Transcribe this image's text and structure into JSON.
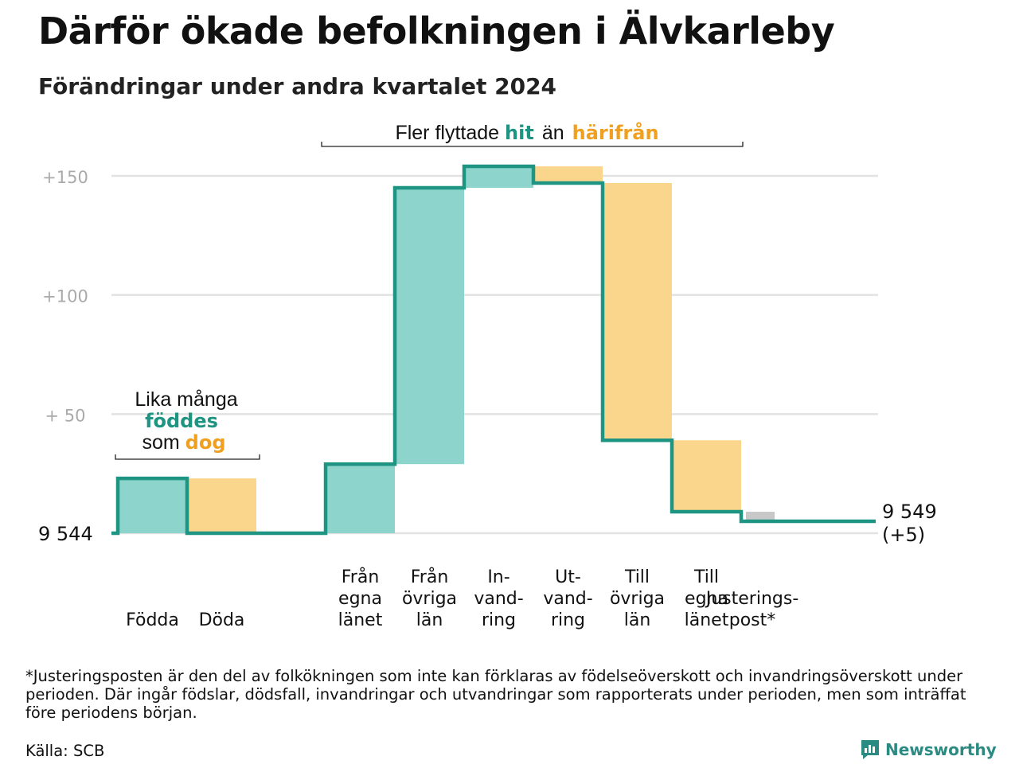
{
  "title": "Därför ökade befolkningen i Älvkarleby",
  "subtitle": "Förändringar under andra kvartalet 2024",
  "colors": {
    "positive": "#8dd5cc",
    "negative": "#fad58c",
    "adjustment": "#c8c8c8",
    "line": "#1e9482",
    "accent_teal": "#1e9482",
    "accent_orange": "#f0a020",
    "grid": "#e2e2e2",
    "tick": "#aaaaaa"
  },
  "chart_data": {
    "type": "waterfall",
    "baseline_value": 9544,
    "ylim": [
      0,
      150
    ],
    "y_ticks": [
      {
        "value": 150,
        "label": "+150"
      },
      {
        "value": 100,
        "label": "+100"
      },
      {
        "value": 50,
        "label": "+  50"
      }
    ],
    "baseline_label": "9  544",
    "end_label": [
      "9 549",
      "(+5)"
    ],
    "steps": [
      {
        "label": [
          "Födda"
        ],
        "value": 23,
        "kind": "positive"
      },
      {
        "label": [
          "Döda"
        ],
        "value": -23,
        "kind": "negative"
      },
      {
        "label": [],
        "value": 0,
        "kind": "gap"
      },
      {
        "label": [
          "Från",
          "egna",
          "länet"
        ],
        "value": 29,
        "kind": "positive"
      },
      {
        "label": [
          "Från",
          "övriga",
          "län"
        ],
        "value": 116,
        "kind": "positive"
      },
      {
        "label": [
          "In-",
          "vand-",
          "ring"
        ],
        "value": 9,
        "kind": "positive"
      },
      {
        "label": [
          "Ut-",
          "vand-",
          "ring"
        ],
        "value": -7,
        "kind": "negative"
      },
      {
        "label": [
          "Till",
          "övriga",
          "län"
        ],
        "value": -108,
        "kind": "negative"
      },
      {
        "label": [
          "Till",
          "egna",
          "länet"
        ],
        "value": -30,
        "kind": "negative"
      },
      {
        "label": [
          "Justerings-",
          "post*"
        ],
        "value": -4,
        "kind": "adjustment"
      }
    ],
    "annotations": {
      "natural": {
        "line1": "Lika många",
        "line2": "föddes",
        "line3_pre": "som ",
        "line3_hl": "dog"
      },
      "migration": {
        "pre": "Fler flyttade ",
        "hit": "hit",
        "mid": "än",
        "harifran": "härifrån"
      }
    }
  },
  "footnote": "*Justeringsposten är den del av folkökningen som inte kan förklaras av födelseöverskott och invandringsöverskott under perioden. Där ingår födslar, dödsfall, invandringar och utvandringar som rapporterats under perioden, men som inträffat före periodens början.",
  "source": "Källa: SCB",
  "brand": "Newsworthy",
  "brand_icon": "newsworthy-logo-icon"
}
